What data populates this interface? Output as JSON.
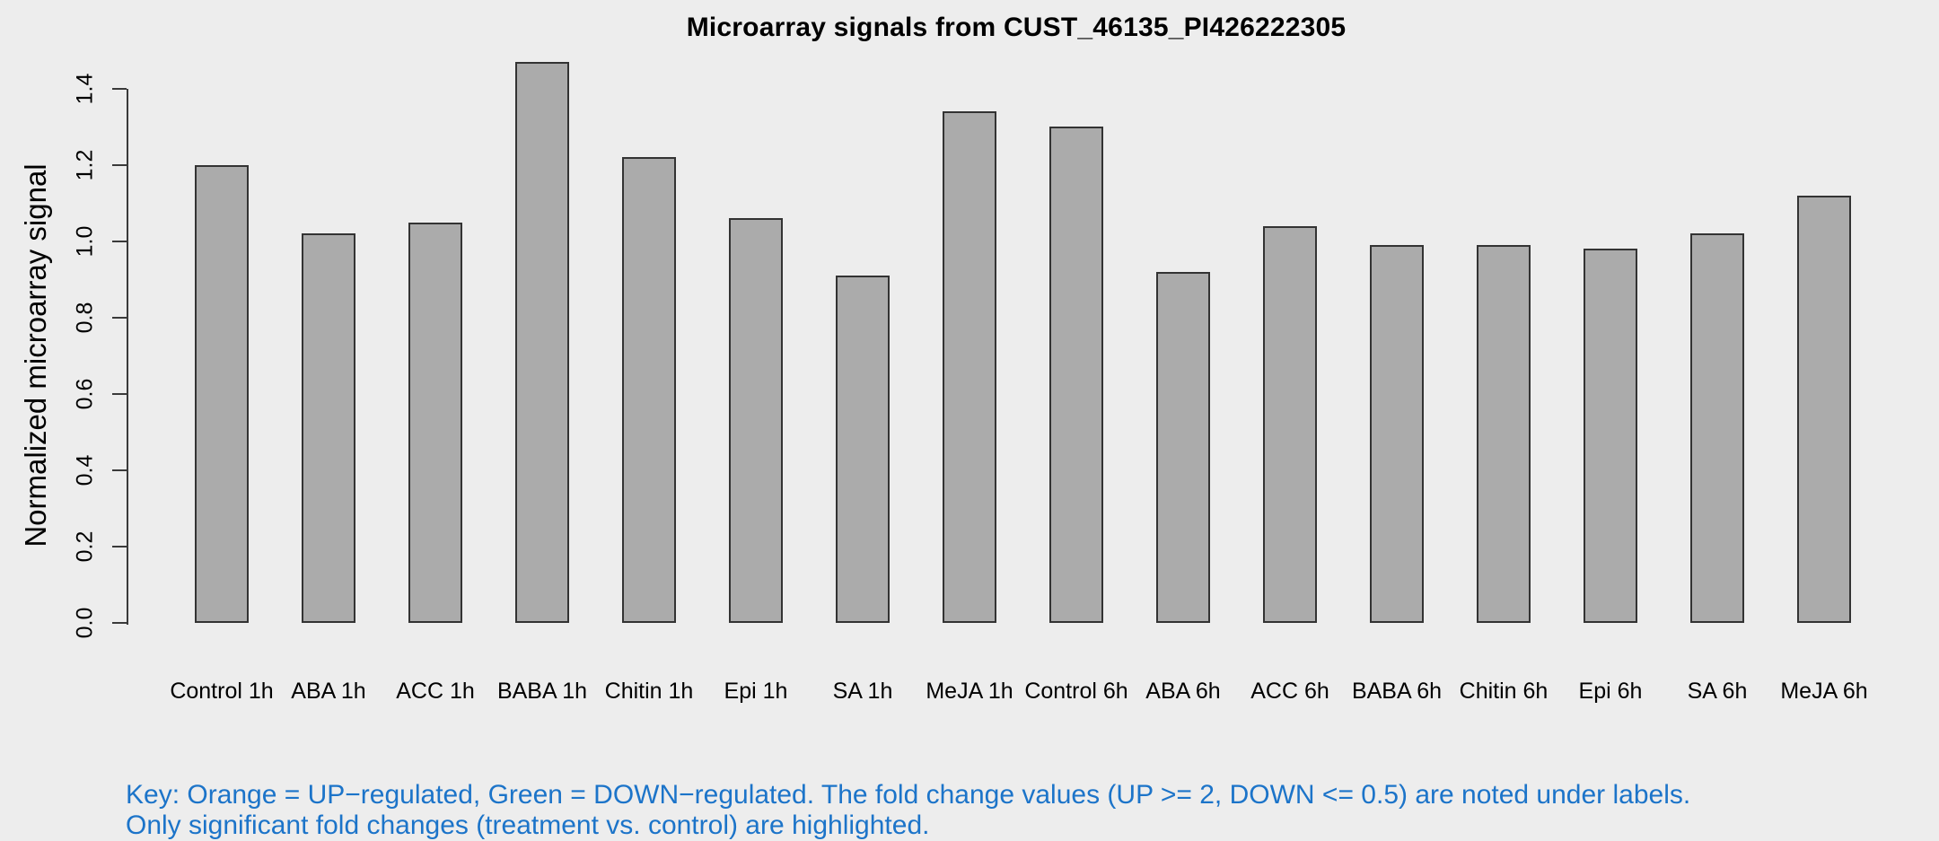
{
  "page": {
    "background": "#EDEDED"
  },
  "chart_data": {
    "type": "bar",
    "title": "Microarray signals from CUST_46135_PI426222305",
    "xlabel": "",
    "ylabel": "Normalized microarray signal",
    "categories": [
      "Control 1h",
      "ABA 1h",
      "ACC 1h",
      "BABA 1h",
      "Chitin 1h",
      "Epi 1h",
      "SA 1h",
      "MeJA 1h",
      "Control 6h",
      "ABA 6h",
      "ACC 6h",
      "BABA 6h",
      "Chitin 6h",
      "Epi 6h",
      "SA 6h",
      "MeJA 6h"
    ],
    "values": [
      1.2,
      1.02,
      1.05,
      1.47,
      1.22,
      1.06,
      0.91,
      1.34,
      1.3,
      0.92,
      1.04,
      0.99,
      0.99,
      0.98,
      1.02,
      1.12
    ],
    "ylim": [
      0,
      1.4
    ],
    "yticks": [
      "0.0",
      "0.2",
      "0.4",
      "0.6",
      "0.8",
      "1.0",
      "1.2",
      "1.4"
    ],
    "grid": false,
    "legend_position": "none",
    "bar_fill_color": "#ABABAB",
    "bar_border_color": "#333333"
  },
  "key_note": {
    "line1": "Key: Orange = UP−regulated, Green = DOWN−regulated. The fold change values (UP >= 2, DOWN <= 0.5) are noted under labels.",
    "line2": "Only significant fold changes (treatment vs. control) are highlighted.",
    "color": "#1C74C9"
  }
}
